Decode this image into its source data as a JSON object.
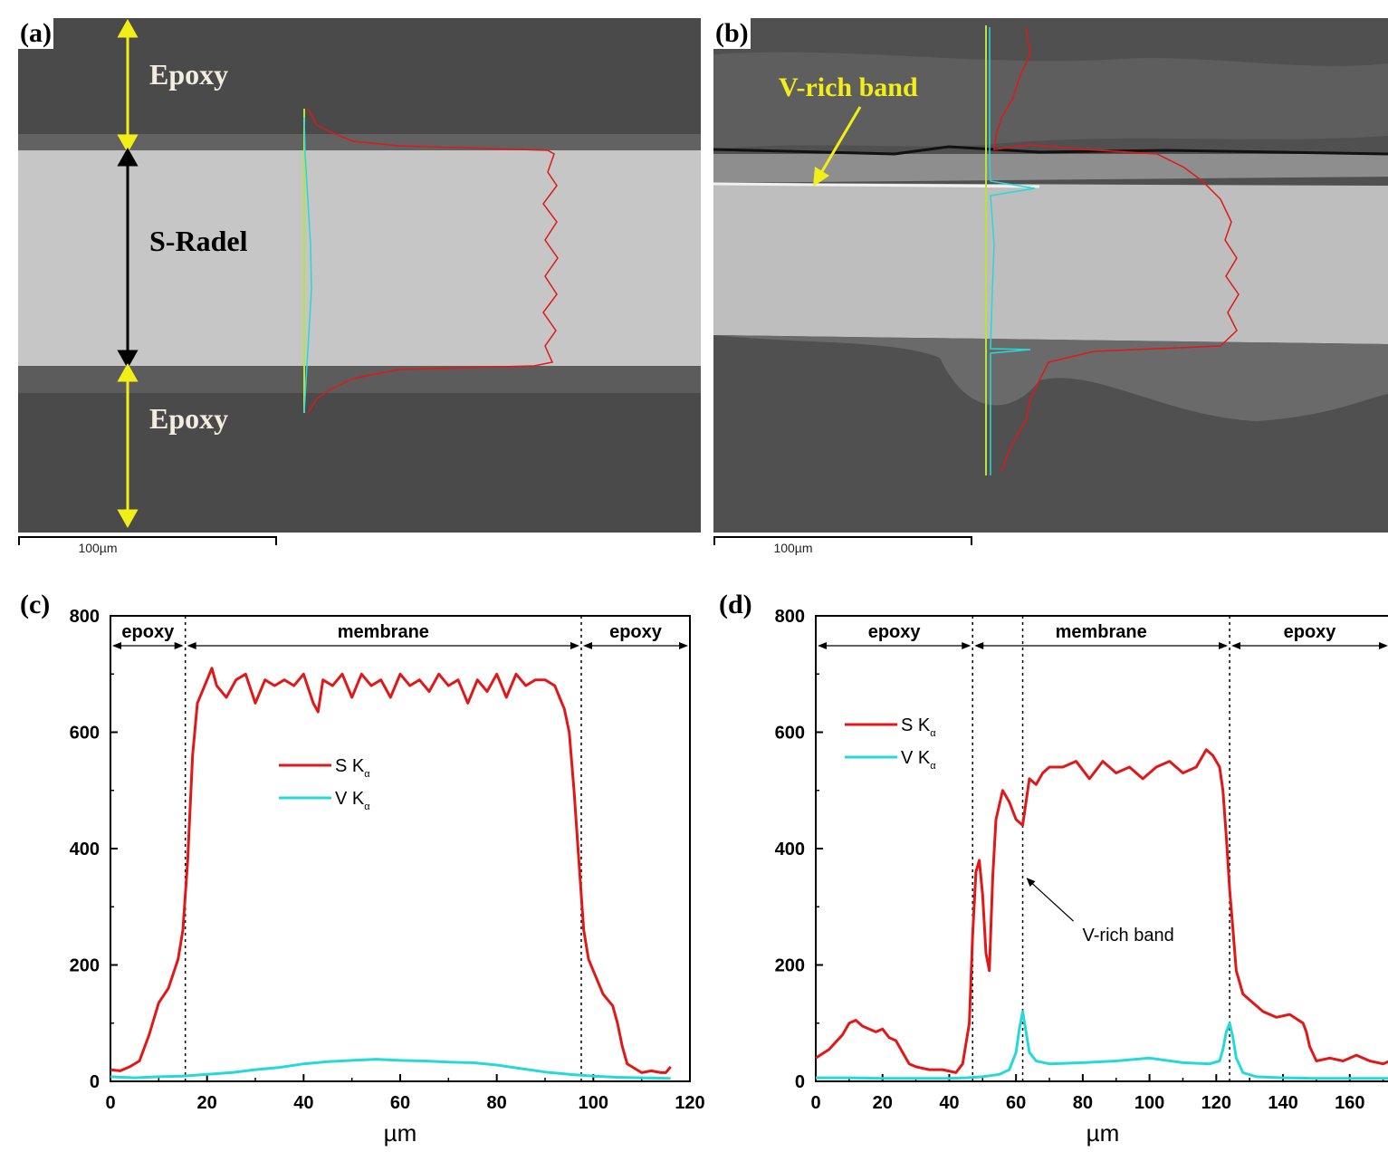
{
  "panels": {
    "a": "(a)",
    "b": "(b)",
    "c": "(c)",
    "d": "(d)"
  },
  "sem_a": {
    "labels": {
      "epoxy_top": "Epoxy",
      "membrane": "S-Radel",
      "epoxy_bottom": "Epoxy"
    },
    "scalebar": "100µm",
    "colors": {
      "epoxy": "#4a4a4a",
      "membrane": "#c4c4c4",
      "arrow_epoxy": "#f2ef18",
      "arrow_membrane": "#000000",
      "s_line": "#e01818",
      "v_line": "#27d8d8",
      "scan_line": "#b4e63a"
    }
  },
  "sem_b": {
    "labels": {
      "vband": "V-rich band"
    },
    "scalebar": "100µm",
    "colors": {
      "label": "#f2ef18"
    }
  },
  "chart_data": [
    {
      "panel": "(c)",
      "type": "line",
      "xlabel": "µm",
      "ylabel": "",
      "xlim": [
        0,
        120
      ],
      "ylim": [
        0,
        800
      ],
      "xticks": [
        0,
        20,
        40,
        60,
        80,
        100,
        120
      ],
      "yticks": [
        0,
        200,
        400,
        600,
        800
      ],
      "regions": [
        {
          "label": "epoxy",
          "from": 0,
          "to": 15.5
        },
        {
          "label": "membrane",
          "from": 15.5,
          "to": 97.5
        },
        {
          "label": "epoxy",
          "from": 97.5,
          "to": 120
        }
      ],
      "dividers": [
        15.5,
        97.5
      ],
      "legend_position": "center",
      "series": [
        {
          "name": "S Kα",
          "color": "#e01818",
          "x": [
            0,
            2,
            4,
            6,
            8,
            10,
            12,
            14,
            15,
            16,
            17,
            18,
            20,
            21,
            22,
            24,
            26,
            28,
            30,
            32,
            34,
            36,
            38,
            40,
            42,
            43,
            44,
            46,
            48,
            50,
            52,
            54,
            56,
            58,
            60,
            62,
            64,
            66,
            68,
            70,
            72,
            74,
            76,
            78,
            80,
            82,
            84,
            86,
            88,
            90,
            92,
            93,
            94,
            95,
            96,
            97,
            98,
            99,
            100,
            101,
            102,
            103,
            104,
            105,
            106,
            107,
            108,
            109,
            110,
            112,
            114,
            115,
            116
          ],
          "y": [
            20,
            18,
            25,
            35,
            80,
            135,
            160,
            210,
            260,
            380,
            560,
            650,
            690,
            710,
            680,
            660,
            690,
            700,
            650,
            690,
            680,
            690,
            680,
            700,
            650,
            635,
            690,
            680,
            700,
            660,
            700,
            680,
            690,
            660,
            700,
            680,
            690,
            670,
            700,
            680,
            690,
            650,
            690,
            670,
            700,
            660,
            700,
            680,
            690,
            690,
            680,
            660,
            640,
            600,
            500,
            380,
            260,
            210,
            190,
            170,
            150,
            140,
            130,
            100,
            60,
            30,
            25,
            20,
            15,
            18,
            15,
            15,
            25
          ]
        },
        {
          "name": "V Kα",
          "color": "#27d8d8",
          "x": [
            0,
            5,
            10,
            15,
            20,
            25,
            30,
            35,
            40,
            45,
            50,
            55,
            60,
            65,
            70,
            75,
            80,
            85,
            90,
            95,
            100,
            105,
            110,
            116
          ],
          "y": [
            8,
            6,
            8,
            9,
            12,
            15,
            20,
            24,
            30,
            34,
            36,
            38,
            36,
            35,
            33,
            32,
            28,
            22,
            16,
            12,
            9,
            7,
            6,
            5
          ]
        }
      ]
    },
    {
      "panel": "(d)",
      "type": "line",
      "xlabel": "µm",
      "ylabel": "",
      "xlim": [
        0,
        172
      ],
      "ylim": [
        0,
        800
      ],
      "xticks": [
        0,
        20,
        40,
        60,
        80,
        100,
        120,
        140,
        160
      ],
      "yticks": [
        0,
        200,
        400,
        600,
        800
      ],
      "regions": [
        {
          "label": "epoxy",
          "from": 0,
          "to": 47
        },
        {
          "label": "membrane",
          "from": 47,
          "to": 124
        },
        {
          "label": "epoxy",
          "from": 124,
          "to": 172
        }
      ],
      "dividers": [
        47,
        62,
        124
      ],
      "annotation": {
        "text": "V-rich band",
        "x": 62,
        "y": 110
      },
      "legend_position": "upper-left",
      "series": [
        {
          "name": "S Kα",
          "color": "#e01818",
          "x": [
            0,
            4,
            8,
            10,
            12,
            14,
            16,
            18,
            20,
            22,
            24,
            26,
            28,
            30,
            34,
            38,
            42,
            44,
            46,
            47,
            48,
            49,
            50,
            51,
            52,
            53,
            54,
            56,
            58,
            60,
            62,
            63,
            64,
            66,
            68,
            70,
            74,
            78,
            82,
            86,
            90,
            94,
            98,
            102,
            106,
            110,
            114,
            117,
            119,
            121,
            122,
            123,
            124,
            125,
            126,
            128,
            130,
            134,
            138,
            142,
            146,
            147,
            148,
            150,
            154,
            158,
            162,
            166,
            170,
            172
          ],
          "y": [
            40,
            55,
            80,
            100,
            105,
            95,
            90,
            85,
            90,
            75,
            70,
            50,
            30,
            25,
            20,
            20,
            15,
            30,
            100,
            250,
            360,
            380,
            320,
            220,
            190,
            350,
            450,
            500,
            480,
            450,
            440,
            480,
            520,
            510,
            530,
            540,
            540,
            550,
            520,
            550,
            530,
            540,
            520,
            540,
            550,
            530,
            540,
            570,
            560,
            540,
            500,
            420,
            330,
            260,
            190,
            150,
            140,
            120,
            110,
            115,
            100,
            85,
            60,
            35,
            40,
            35,
            45,
            35,
            30,
            35
          ]
        },
        {
          "name": "V Kα",
          "color": "#27d8d8",
          "x": [
            0,
            10,
            20,
            30,
            40,
            45,
            50,
            55,
            58,
            60,
            61,
            62,
            63,
            64,
            66,
            70,
            80,
            90,
            100,
            110,
            118,
            121,
            122,
            123,
            124,
            125,
            126,
            128,
            132,
            140,
            150,
            160,
            172
          ],
          "y": [
            6,
            6,
            5,
            5,
            5,
            6,
            8,
            12,
            20,
            50,
            90,
            120,
            85,
            50,
            35,
            30,
            32,
            35,
            40,
            32,
            30,
            35,
            55,
            85,
            100,
            75,
            40,
            15,
            8,
            6,
            5,
            5,
            5
          ]
        }
      ]
    }
  ]
}
